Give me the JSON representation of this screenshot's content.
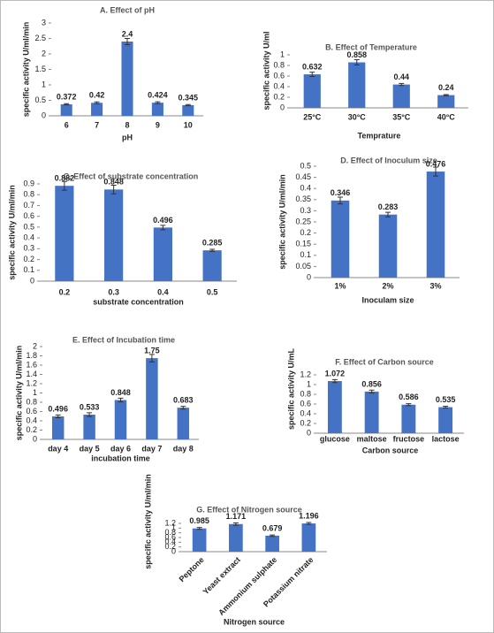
{
  "chart_data": [
    {
      "type": "bar",
      "title": "A. Effect of pH",
      "ylabel": "specific activity U/ml/min",
      "xlabel": "pH",
      "categories": [
        "6",
        "7",
        "8",
        "9",
        "10"
      ],
      "values": [
        0.372,
        0.42,
        2.4,
        0.424,
        0.345
      ],
      "errors": [
        0.02,
        0.03,
        0.1,
        0.03,
        0.02
      ],
      "color": "#4472c4",
      "ylim": [
        0,
        3
      ],
      "yticks": [
        0,
        0.5,
        1,
        1.5,
        2,
        2.5,
        3
      ]
    },
    {
      "type": "bar",
      "title": "B. Effect of Temperature",
      "ylabel": "specific activity U/ml",
      "xlabel": "Temprature",
      "categories": [
        "25°C",
        "30°C",
        "35°C",
        "40°C"
      ],
      "values": [
        0.632,
        0.858,
        0.44,
        0.24
      ],
      "errors": [
        0.04,
        0.05,
        0.02,
        0.01
      ],
      "color": "#4472c4",
      "ylim": [
        0,
        1
      ],
      "yticks": [
        0,
        0.2,
        0.4,
        0.6,
        0.8,
        1
      ]
    },
    {
      "type": "bar",
      "title": "C. Effect of substrate concentration",
      "ylabel": "specific activity U/ml/min",
      "xlabel": "substrate concentration",
      "categories": [
        "0.2",
        "0.3",
        "0.4",
        "0.5"
      ],
      "values": [
        0.882,
        0.848,
        0.496,
        0.285
      ],
      "errors": [
        0.04,
        0.04,
        0.02,
        0.01
      ],
      "color": "#4472c4",
      "ylim": [
        0,
        0.9
      ],
      "yticks": [
        0,
        0.1,
        0.2,
        0.3,
        0.4,
        0.5,
        0.6,
        0.7,
        0.8,
        0.9
      ]
    },
    {
      "type": "bar",
      "title": "D. Effect of Inoculum size",
      "ylabel": "specific activity U/ml/min",
      "xlabel": "Inoculam size",
      "categories": [
        "1%",
        "2%",
        "3%"
      ],
      "values": [
        0.346,
        0.283,
        0.476
      ],
      "errors": [
        0.015,
        0.01,
        0.02
      ],
      "color": "#4472c4",
      "ylim": [
        0,
        0.5
      ],
      "yticks": [
        0,
        0.05,
        0.1,
        0.15,
        0.2,
        0.25,
        0.3,
        0.35,
        0.4,
        0.45,
        0.5
      ]
    },
    {
      "type": "bar",
      "title": "E. Effect of Incubation time",
      "ylabel": "specific activity U/ml/min",
      "xlabel": "incubation time",
      "categories": [
        "day 4",
        "day 5",
        "day 6",
        "day 7",
        "day 8"
      ],
      "values": [
        0.496,
        0.533,
        0.848,
        1.75,
        0.683
      ],
      "errors": [
        0.03,
        0.04,
        0.04,
        0.08,
        0.03
      ],
      "color": "#4472c4",
      "ylim": [
        0,
        2
      ],
      "yticks": [
        0,
        0.2,
        0.4,
        0.6,
        0.8,
        1,
        1.2,
        1.4,
        1.6,
        1.8,
        2
      ]
    },
    {
      "type": "bar",
      "title": "F. Effect of Carbon source",
      "ylabel": "specific activity U/mL",
      "xlabel": "Carbon source",
      "categories": [
        "glucose",
        "maltose",
        "fructose",
        "lactose"
      ],
      "values": [
        1.072,
        0.856,
        0.586,
        0.535
      ],
      "errors": [
        0.03,
        0.03,
        0.02,
        0.02
      ],
      "color": "#4472c4",
      "ylim": [
        0,
        1.2
      ],
      "yticks": [
        0,
        0.2,
        0.4,
        0.6,
        0.8,
        1,
        1.2
      ]
    },
    {
      "type": "bar",
      "title": "G. Effect of Nitrogen source",
      "ylabel": "specific activity U/ml/min",
      "xlabel": "Nitrogen source",
      "categories": [
        "Peptone",
        "Yeast extract",
        "Ammonium sulphate",
        "Potassium nitrate"
      ],
      "values": [
        0.985,
        1.171,
        0.679,
        1.196
      ],
      "errors": [
        0.04,
        0.05,
        0.03,
        0.04
      ],
      "color": "#4472c4",
      "ylim": [
        0,
        1.2
      ],
      "yticks": [
        0,
        0.2,
        0.4,
        0.6,
        0.8,
        1,
        1.2
      ]
    }
  ]
}
